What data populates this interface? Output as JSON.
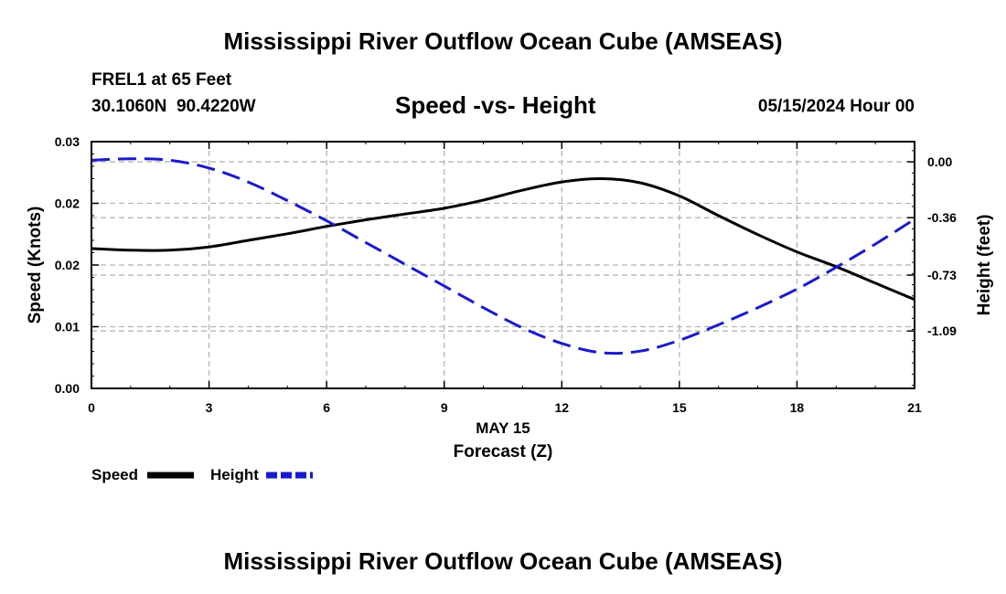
{
  "header": {
    "title": "Mississippi River Outflow Ocean Cube (AMSEAS)",
    "station": "FREL1 at 65 Feet",
    "coords": "30.1060N  90.4220W",
    "chart_title": "Speed -vs- Height",
    "date": "05/15/2024 Hour 00"
  },
  "legend": {
    "speed_label": "Speed",
    "height_label": "Height"
  },
  "footer": {
    "title": "Mississippi River Outflow Ocean Cube (AMSEAS)"
  },
  "colors": {
    "speed": "#000000",
    "height": "#1a1acc",
    "grid": "#b4b4b4"
  },
  "chart_data": {
    "type": "line",
    "title": "Speed -vs- Height",
    "xlabel": "Forecast (Z)",
    "xsublabel": "MAY 15",
    "ylabel": "Speed (Knots)",
    "y2label": "Height (feet)",
    "xlim": [
      0,
      21
    ],
    "ylim": [
      0.0,
      0.03
    ],
    "y2lim": [
      -1.46,
      0.13
    ],
    "xticks": [
      0,
      3,
      6,
      9,
      12,
      15,
      18,
      21
    ],
    "xtick_labels": [
      "0",
      "3",
      "6",
      "9",
      "12",
      "15",
      "18",
      "21"
    ],
    "yticks": [
      0,
      0.0075,
      0.015,
      0.0225,
      0.03
    ],
    "ytick_labels": [
      "0.00",
      "0.01",
      "0.02",
      "0.02",
      "0.03"
    ],
    "y2ticks": [
      0.0,
      -0.36,
      -0.73,
      -1.09
    ],
    "y2tick_labels": [
      "0.00",
      "-0.36",
      "-0.73",
      "-1.09"
    ],
    "grid": true,
    "series": [
      {
        "name": "Speed",
        "axis": "left",
        "style": "solid",
        "x": [
          0,
          1,
          2,
          3,
          4,
          5,
          6,
          7,
          8,
          9,
          10,
          11,
          12,
          13,
          14,
          15,
          16,
          17,
          18,
          19,
          20,
          21
        ],
        "values": [
          0.017,
          0.0168,
          0.0168,
          0.0172,
          0.018,
          0.0188,
          0.0197,
          0.0205,
          0.0212,
          0.0219,
          0.0229,
          0.0241,
          0.0251,
          0.0255,
          0.025,
          0.0234,
          0.021,
          0.0187,
          0.0166,
          0.0148,
          0.0128,
          0.0108
        ]
      },
      {
        "name": "Height",
        "axis": "right",
        "style": "dashed",
        "x": [
          0,
          1,
          2,
          3,
          4,
          5,
          6,
          7,
          8,
          9,
          10,
          11,
          12,
          13,
          14,
          15,
          16,
          17,
          18,
          19,
          20,
          21
        ],
        "values": [
          0.01,
          0.02,
          0.01,
          -0.04,
          -0.13,
          -0.25,
          -0.38,
          -0.52,
          -0.66,
          -0.8,
          -0.94,
          -1.07,
          -1.17,
          -1.23,
          -1.22,
          -1.15,
          -1.05,
          -0.94,
          -0.82,
          -0.68,
          -0.53,
          -0.37
        ]
      }
    ]
  }
}
